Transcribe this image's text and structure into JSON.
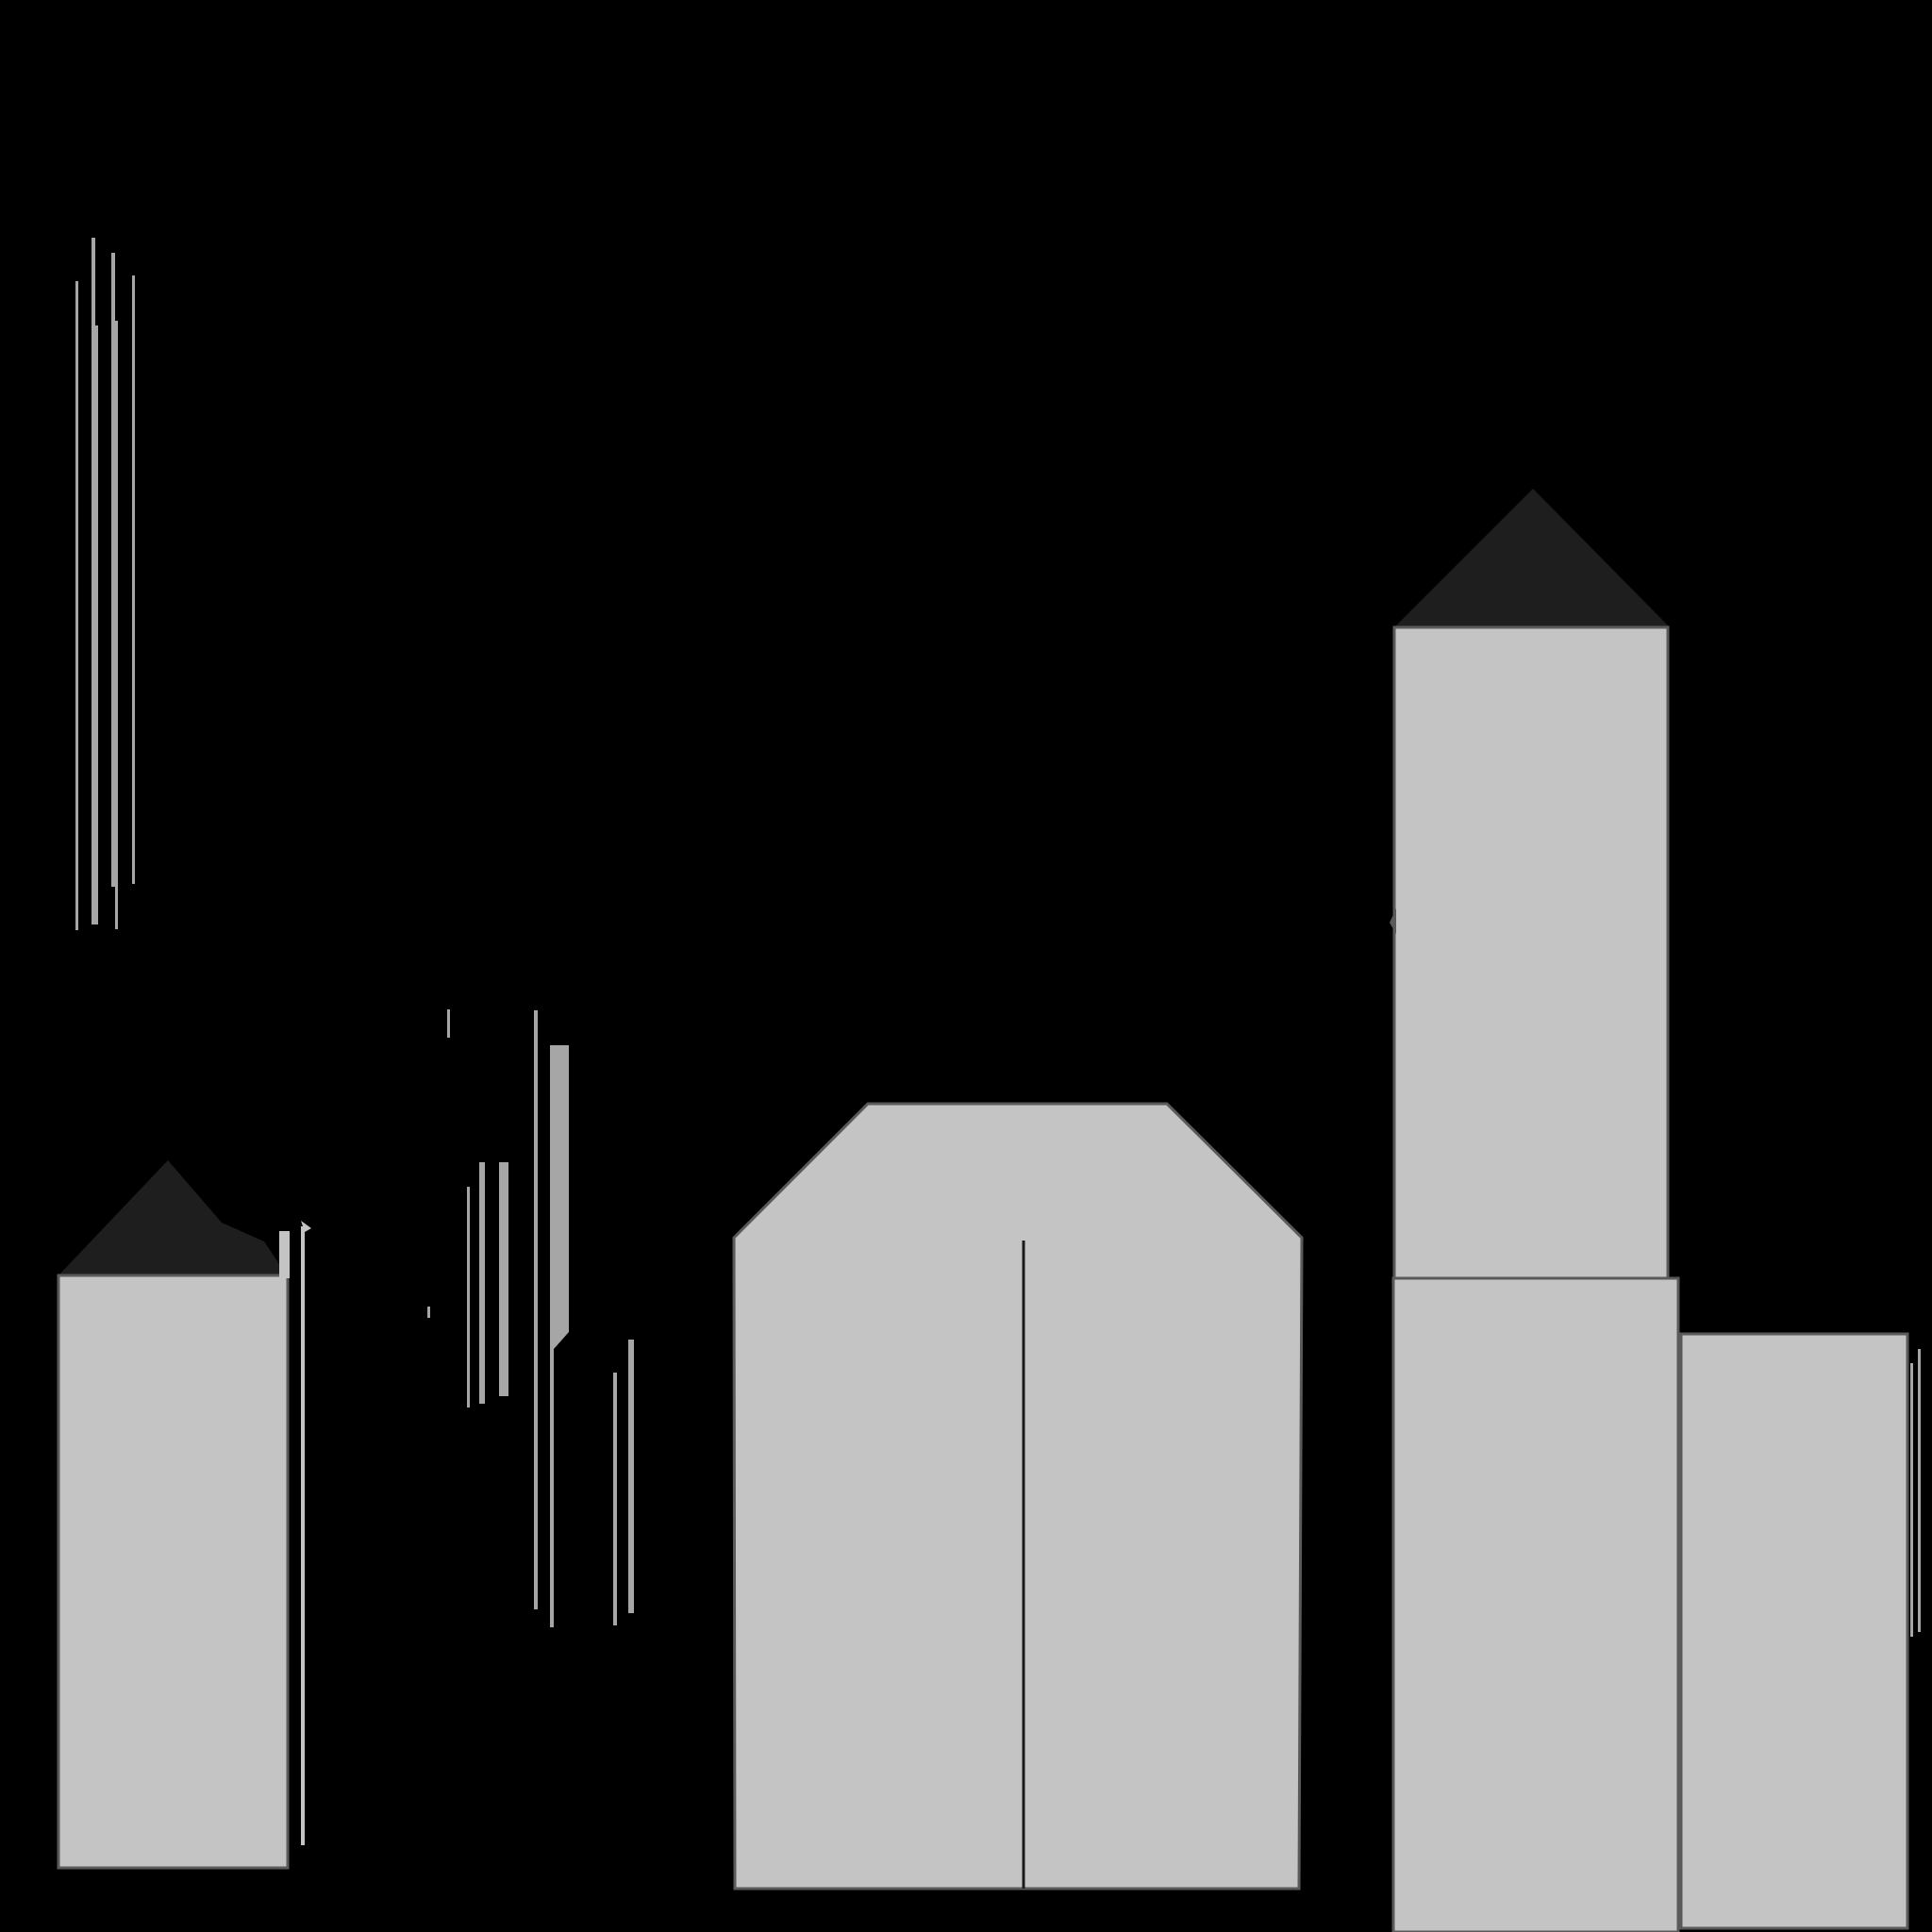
{
  "scene": {
    "colors": {
      "background": "#000000",
      "wall": "#c4c4c4",
      "roof": "#1e1e1e",
      "outline": "#5a5a5a",
      "sliver": "#a6a6a6",
      "seam": "#1a1a1a"
    },
    "elements": [
      "building-tall-left",
      "building-central-hall",
      "building-tower-right",
      "building-tower-base",
      "building-annex-right",
      "sliver-cluster-upper-left",
      "sliver-cluster-middle"
    ]
  }
}
